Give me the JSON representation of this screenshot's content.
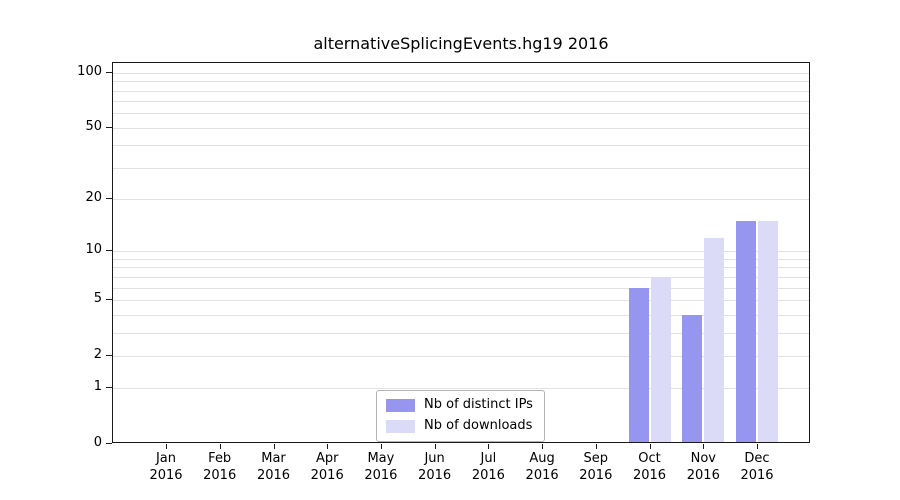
{
  "chart_data": {
    "type": "bar",
    "title": "alternativeSplicingEvents.hg19 2016",
    "categories": [
      "Jan 2016",
      "Feb 2016",
      "Mar 2016",
      "Apr 2016",
      "May 2016",
      "Jun 2016",
      "Jul 2016",
      "Aug 2016",
      "Sep 2016",
      "Oct 2016",
      "Nov 2016",
      "Dec 2016"
    ],
    "series": [
      {
        "name": "Nb of distinct IPs",
        "color": "#9696f0",
        "values": [
          0,
          0,
          0,
          0,
          0,
          0,
          0,
          0,
          0,
          6,
          4,
          15
        ]
      },
      {
        "name": "Nb of downloads",
        "color": "#dbdbf8",
        "values": [
          0,
          0,
          0,
          0,
          0,
          0,
          0,
          0,
          0,
          7,
          12,
          15
        ]
      }
    ],
    "xlabel": "",
    "ylabel": "",
    "yaxis": {
      "scale": "log1p",
      "ticks": [
        100,
        50,
        20,
        10,
        5,
        2,
        1,
        0
      ],
      "range": [
        0,
        100
      ]
    },
    "grid": "horizontal, minor log steps (1-9, 10-90, 100), light gray",
    "legend_position": "bottom-center-inside",
    "colors": {
      "background": "#ffffff",
      "frame": "#1a1a1a",
      "gridline": "#e2e2e2"
    }
  }
}
